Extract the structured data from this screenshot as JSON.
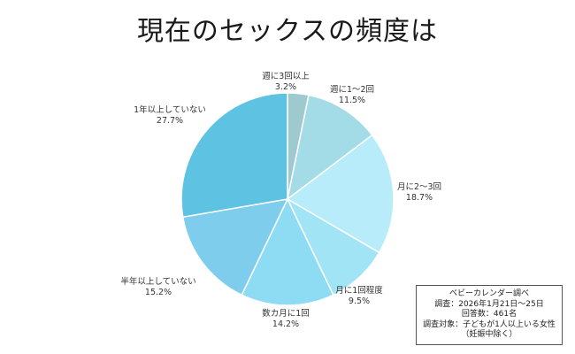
{
  "chart_data": {
    "type": "pie",
    "title": "現在のセックスの頻度は",
    "slices": [
      {
        "label": "週に3回以上",
        "value": 3.2,
        "value_text": "3.2%",
        "color": "#9ec9cf"
      },
      {
        "label": "週に1〜2回",
        "value": 11.5,
        "value_text": "11.5%",
        "color": "#a3dbe6"
      },
      {
        "label": "月に2〜3回",
        "value": 18.7,
        "value_text": "18.7%",
        "color": "#b8ecfa"
      },
      {
        "label": "月に1回程度",
        "value": 9.5,
        "value_text": "9.5%",
        "color": "#a0e4f5"
      },
      {
        "label": "数カ月に1回",
        "value": 14.2,
        "value_text": "14.2%",
        "color": "#8edcf3"
      },
      {
        "label": "半年以上していない",
        "value": 15.2,
        "value_text": "15.2%",
        "color": "#7ecdec"
      },
      {
        "label": "1年以上していない",
        "value": 27.7,
        "value_text": "27.7%",
        "color": "#5ec2e2"
      }
    ]
  },
  "source_box": {
    "line1": "ベビーカレンダー調べ",
    "line2": "調査：2026年1月21日〜25日",
    "line3": "回答数：461名",
    "line4": "調査対象：子どもが1人以上いる女性",
    "line5": "（妊娠中除く）"
  }
}
